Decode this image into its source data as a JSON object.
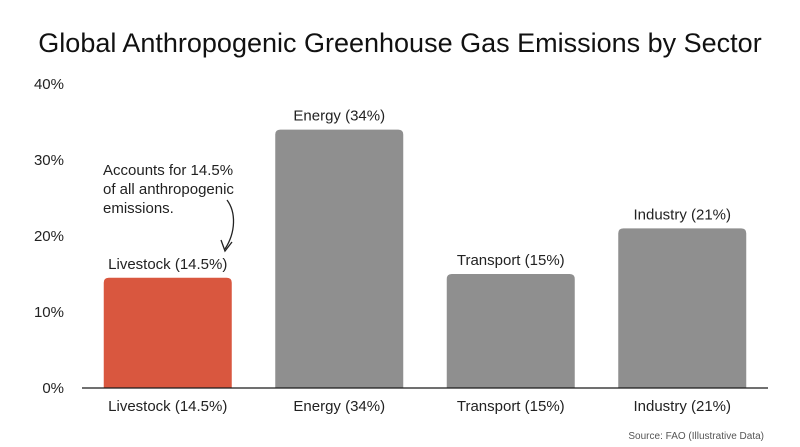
{
  "chart_data": {
    "type": "bar",
    "title": "Global Anthropogenic Greenhouse Gas Emissions by Sector",
    "categories": [
      "Livestock (14.5%)",
      "Energy (34%)",
      "Transport (15%)",
      "Industry (21%)"
    ],
    "values": [
      14.5,
      34,
      15,
      21
    ],
    "data_labels": [
      "Livestock (14.5%)",
      "Energy (34%)",
      "Transport (15%)",
      "Industry (21%)"
    ],
    "colors": [
      "#d9573f",
      "#8f8f8f",
      "#8f8f8f",
      "#8f8f8f"
    ],
    "ylim": [
      0,
      40
    ],
    "yticks": [
      0,
      10,
      20,
      30,
      40
    ],
    "ytick_labels": [
      "0%",
      "10%",
      "20%",
      "30%",
      "40%"
    ],
    "xlabel": "",
    "ylabel": "",
    "grid": false,
    "legend": "none",
    "annotation": {
      "target_category": "Livestock (14.5%)",
      "lines": [
        "Accounts for 14.5%",
        "of all anthropogenic",
        "emissions."
      ]
    },
    "source": "Source: FAO (Illustrative Data)"
  }
}
